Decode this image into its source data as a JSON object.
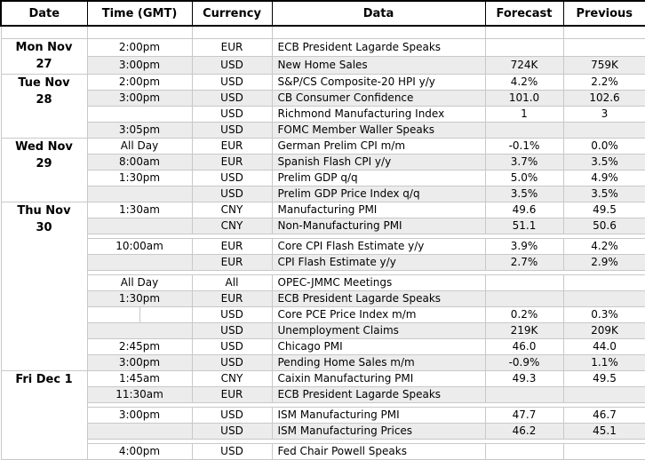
{
  "chart_data": {
    "type": "table",
    "columns": [
      "Date",
      "Time (GMT)",
      "Currency",
      "Data",
      "Forecast",
      "Previous"
    ],
    "groups": [
      {
        "date_lines": [
          "Mon Nov",
          "27"
        ],
        "rows": [
          {
            "time": "2:00pm",
            "currency": "EUR",
            "event": "ECB President Lagarde Speaks",
            "forecast": "",
            "previous": "",
            "shaded": false
          },
          {
            "time": "3:00pm",
            "currency": "USD",
            "event": "New Home Sales",
            "forecast": "724K",
            "previous": "759K",
            "shaded": true
          }
        ]
      },
      {
        "date_lines": [
          "Tue Nov",
          "28"
        ],
        "rows": [
          {
            "time": "2:00pm",
            "currency": "USD",
            "event": "S&P/CS Composite-20 HPI y/y",
            "forecast": "4.2%",
            "previous": "2.2%",
            "shaded": false
          },
          {
            "time": "3:00pm",
            "currency": "USD",
            "event": "CB Consumer Confidence",
            "forecast": "101.0",
            "previous": "102.6",
            "shaded": true
          },
          {
            "time": "",
            "currency": "USD",
            "event": "Richmond Manufacturing Index",
            "forecast": "1",
            "previous": "3",
            "shaded": false
          },
          {
            "time": "3:05pm",
            "currency": "USD",
            "event": "FOMC Member Waller Speaks",
            "forecast": "",
            "previous": "",
            "shaded": true
          }
        ]
      },
      {
        "date_lines": [
          "Wed Nov",
          "29"
        ],
        "rows": [
          {
            "time": "All Day",
            "currency": "EUR",
            "event": "German Prelim CPI m/m",
            "forecast": "-0.1%",
            "previous": "0.0%",
            "shaded": false
          },
          {
            "time": "8:00am",
            "currency": "EUR",
            "event": "Spanish Flash CPI y/y",
            "forecast": "3.7%",
            "previous": "3.5%",
            "shaded": true
          },
          {
            "time": "1:30pm",
            "currency": "USD",
            "event": "Prelim GDP q/q",
            "forecast": "5.0%",
            "previous": "4.9%",
            "shaded": false
          },
          {
            "time": "",
            "currency": "USD",
            "event": "Prelim GDP Price Index q/q",
            "forecast": "3.5%",
            "previous": "3.5%",
            "shaded": true
          }
        ]
      },
      {
        "date_lines": [
          "Thu Nov",
          "30"
        ],
        "rows": [
          {
            "time": "1:30am",
            "currency": "CNY",
            "event": "Manufacturing PMI",
            "forecast": "49.6",
            "previous": "49.5",
            "shaded": false
          },
          {
            "time": "",
            "currency": "CNY",
            "event": "Non-Manufacturing PMI",
            "forecast": "51.1",
            "previous": "50.6",
            "shaded": true
          },
          {
            "spacer": true
          },
          {
            "time": "10:00am",
            "currency": "EUR",
            "event": "Core CPI Flash Estimate y/y",
            "forecast": "3.9%",
            "previous": "4.2%",
            "shaded": false
          },
          {
            "time": "",
            "currency": "EUR",
            "event": "CPI Flash Estimate y/y",
            "forecast": "2.7%",
            "previous": "2.9%",
            "shaded": true
          },
          {
            "spacer": true
          },
          {
            "time": "All Day",
            "currency": "All",
            "event": "OPEC-JMMC Meetings",
            "forecast": "",
            "previous": "",
            "shaded": false
          },
          {
            "time": "1:30pm",
            "currency": "EUR",
            "event": "ECB President Lagarde Speaks",
            "forecast": "",
            "previous": "",
            "shaded": true
          },
          {
            "time": "",
            "currency": "USD",
            "event": "Core PCE Price Index m/m",
            "forecast": "0.2%",
            "previous": "0.3%",
            "shaded": false,
            "split_time": true
          },
          {
            "time": "",
            "currency": "USD",
            "event": "Unemployment Claims",
            "forecast": "219K",
            "previous": "209K",
            "shaded": true
          },
          {
            "time": "2:45pm",
            "currency": "USD",
            "event": "Chicago PMI",
            "forecast": "46.0",
            "previous": "44.0",
            "shaded": false
          },
          {
            "time": "3:00pm",
            "currency": "USD",
            "event": "Pending Home Sales m/m",
            "forecast": "-0.9%",
            "previous": "1.1%",
            "shaded": true
          }
        ]
      },
      {
        "date_lines": [
          "Fri Dec 1"
        ],
        "rows": [
          {
            "time": "1:45am",
            "currency": "CNY",
            "event": "Caixin Manufacturing PMI",
            "forecast": "49.3",
            "previous": "49.5",
            "shaded": false
          },
          {
            "time": "11:30am",
            "currency": "EUR",
            "event": "ECB President Lagarde Speaks",
            "forecast": "",
            "previous": "",
            "shaded": true
          },
          {
            "spacer": true
          },
          {
            "time": "3:00pm",
            "currency": "USD",
            "event": "ISM Manufacturing PMI",
            "forecast": "47.7",
            "previous": "46.7",
            "shaded": false
          },
          {
            "time": "",
            "currency": "USD",
            "event": "ISM Manufacturing Prices",
            "forecast": "46.2",
            "previous": "45.1",
            "shaded": true
          },
          {
            "spacer": true
          },
          {
            "time": "4:00pm",
            "currency": "USD",
            "event": "Fed Chair Powell Speaks",
            "forecast": "",
            "previous": "",
            "shaded": false
          }
        ]
      }
    ]
  },
  "colors": {
    "shaded_row": "#ececec",
    "row_border": "#c8c8c8",
    "group_border": "#8f8f8f",
    "header_border": "#000000",
    "background": "#ffffff",
    "text": "#000000"
  }
}
